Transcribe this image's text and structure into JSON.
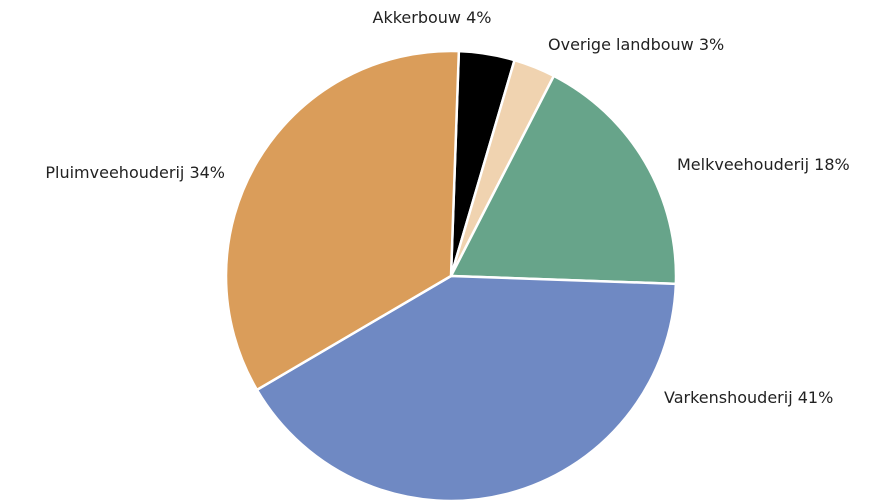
{
  "chart_data": {
    "type": "pie",
    "categories": [
      "Akkerbouw",
      "Overige landbouw",
      "Melkveehouderij",
      "Varkenshouderij",
      "Pluimveehouderij"
    ],
    "values": [
      4,
      3,
      18,
      41,
      34
    ],
    "value_labels": [
      "4%",
      "3%",
      "18%",
      "41%",
      "34%"
    ],
    "colors": [
      "#000000",
      "#f0d3b0",
      "#67a48a",
      "#6f89c3",
      "#da9d5a"
    ]
  }
}
